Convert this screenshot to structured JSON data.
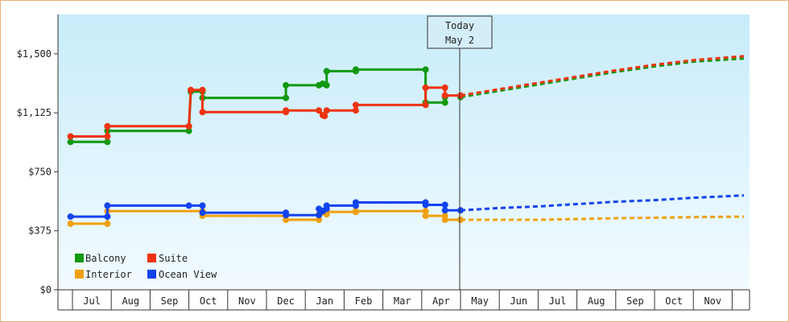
{
  "chart_data": {
    "type": "line",
    "title": "",
    "xlabel": "",
    "ylabel": "",
    "ylim": [
      0,
      1750
    ],
    "y_ticks": [
      "$0",
      "$375",
      "$750",
      "$1,125",
      "$1,500"
    ],
    "x_ticks": [
      "Jul",
      "Aug",
      "Sep",
      "Oct",
      "Nov",
      "Dec",
      "Jan",
      "Feb",
      "Mar",
      "Apr",
      "May",
      "Jun",
      "Jul",
      "Aug",
      "Sep",
      "Oct",
      "Nov"
    ],
    "today_marker": {
      "line1": "Today",
      "line2": "May 2"
    },
    "legend_position": "bottom-left",
    "grid": false,
    "series": [
      {
        "name": "Balcony",
        "color": "#119911",
        "history": [
          [
            -0.05,
            940
          ],
          [
            0.9,
            940
          ],
          [
            0.9,
            1010
          ],
          [
            3.0,
            1010
          ],
          [
            3.05,
            1260
          ],
          [
            3.35,
            1260
          ],
          [
            3.35,
            1220
          ],
          [
            5.5,
            1220
          ],
          [
            5.5,
            1300
          ],
          [
            6.35,
            1300
          ],
          [
            6.55,
            1300
          ],
          [
            6.55,
            1390
          ],
          [
            7.3,
            1390
          ],
          [
            7.3,
            1400
          ],
          [
            9.1,
            1400
          ],
          [
            9.1,
            1190
          ],
          [
            9.6,
            1190
          ],
          [
            9.6,
            1225
          ]
        ],
        "markers": [
          [
            -0.05,
            940
          ],
          [
            0.9,
            940
          ],
          [
            0.9,
            1010
          ],
          [
            3.0,
            1010
          ],
          [
            3.05,
            1260
          ],
          [
            3.35,
            1260
          ],
          [
            3.35,
            1220
          ],
          [
            5.5,
            1220
          ],
          [
            5.5,
            1300
          ],
          [
            6.35,
            1300
          ],
          [
            6.45,
            1310
          ],
          [
            6.55,
            1300
          ],
          [
            6.55,
            1390
          ],
          [
            7.3,
            1390
          ],
          [
            7.3,
            1400
          ],
          [
            9.1,
            1400
          ],
          [
            9.1,
            1190
          ],
          [
            9.6,
            1190
          ],
          [
            9.6,
            1225
          ],
          [
            10.0,
            1225
          ]
        ],
        "forecast": [
          [
            10.0,
            1225
          ],
          [
            11.0,
            1265
          ],
          [
            12.0,
            1305
          ],
          [
            13.0,
            1345
          ],
          [
            14.0,
            1385
          ],
          [
            15.0,
            1420
          ],
          [
            16.0,
            1450
          ],
          [
            17.3,
            1470
          ]
        ]
      },
      {
        "name": "Suite",
        "color": "#ee3311",
        "history": [
          [
            -0.05,
            975
          ],
          [
            0.9,
            975
          ],
          [
            0.9,
            1040
          ],
          [
            3.0,
            1040
          ],
          [
            3.05,
            1270
          ],
          [
            3.35,
            1270
          ],
          [
            3.35,
            1130
          ],
          [
            5.5,
            1130
          ],
          [
            5.5,
            1140
          ],
          [
            6.35,
            1140
          ],
          [
            6.5,
            1105
          ],
          [
            6.55,
            1140
          ],
          [
            7.3,
            1140
          ],
          [
            7.3,
            1175
          ],
          [
            9.1,
            1175
          ],
          [
            9.1,
            1285
          ],
          [
            9.6,
            1285
          ],
          [
            9.6,
            1235
          ],
          [
            10.0,
            1235
          ]
        ],
        "markers": [
          [
            -0.05,
            975
          ],
          [
            0.9,
            975
          ],
          [
            0.9,
            1040
          ],
          [
            3.0,
            1040
          ],
          [
            3.05,
            1270
          ],
          [
            3.35,
            1270
          ],
          [
            3.35,
            1130
          ],
          [
            5.5,
            1130
          ],
          [
            5.5,
            1140
          ],
          [
            6.35,
            1140
          ],
          [
            6.45,
            1110
          ],
          [
            6.5,
            1105
          ],
          [
            6.55,
            1140
          ],
          [
            7.3,
            1140
          ],
          [
            7.3,
            1175
          ],
          [
            9.1,
            1175
          ],
          [
            9.1,
            1285
          ],
          [
            9.6,
            1285
          ],
          [
            9.6,
            1235
          ],
          [
            10.0,
            1235
          ]
        ],
        "forecast": [
          [
            10.0,
            1235
          ],
          [
            11.0,
            1275
          ],
          [
            12.0,
            1315
          ],
          [
            13.0,
            1355
          ],
          [
            14.0,
            1395
          ],
          [
            15.0,
            1430
          ],
          [
            16.0,
            1460
          ],
          [
            17.3,
            1485
          ]
        ]
      },
      {
        "name": "Interior",
        "color": "#f0a010",
        "history": [
          [
            -0.05,
            420
          ],
          [
            0.9,
            420
          ],
          [
            0.9,
            500
          ],
          [
            3.0,
            500
          ],
          [
            3.35,
            500
          ],
          [
            3.35,
            470
          ],
          [
            5.5,
            470
          ],
          [
            5.5,
            445
          ],
          [
            6.35,
            445
          ],
          [
            6.35,
            480
          ],
          [
            6.55,
            480
          ],
          [
            6.55,
            495
          ],
          [
            7.3,
            495
          ],
          [
            7.3,
            500
          ],
          [
            9.1,
            500
          ],
          [
            9.1,
            470
          ],
          [
            9.6,
            470
          ],
          [
            9.6,
            445
          ],
          [
            10.0,
            445
          ]
        ],
        "markers": [
          [
            -0.05,
            420
          ],
          [
            0.9,
            420
          ],
          [
            0.9,
            500
          ],
          [
            3.35,
            500
          ],
          [
            3.35,
            470
          ],
          [
            5.5,
            470
          ],
          [
            5.5,
            445
          ],
          [
            6.35,
            445
          ],
          [
            6.35,
            480
          ],
          [
            6.55,
            480
          ],
          [
            6.55,
            495
          ],
          [
            7.3,
            495
          ],
          [
            7.3,
            500
          ],
          [
            9.1,
            500
          ],
          [
            9.1,
            470
          ],
          [
            9.6,
            470
          ],
          [
            9.6,
            445
          ],
          [
            10.0,
            445
          ]
        ],
        "forecast": [
          [
            10.0,
            445
          ],
          [
            12.0,
            445
          ],
          [
            13.0,
            450
          ],
          [
            14.0,
            455
          ],
          [
            15.0,
            458
          ],
          [
            16.0,
            462
          ],
          [
            17.3,
            465
          ]
        ]
      },
      {
        "name": "Ocean View",
        "color": "#1144ee",
        "history": [
          [
            -0.05,
            465
          ],
          [
            0.9,
            465
          ],
          [
            0.9,
            535
          ],
          [
            3.0,
            535
          ],
          [
            3.35,
            535
          ],
          [
            3.35,
            490
          ],
          [
            5.5,
            490
          ],
          [
            5.5,
            475
          ],
          [
            6.35,
            475
          ],
          [
            6.35,
            515
          ],
          [
            6.55,
            515
          ],
          [
            6.55,
            535
          ],
          [
            7.3,
            535
          ],
          [
            7.3,
            555
          ],
          [
            9.1,
            555
          ],
          [
            9.1,
            540
          ],
          [
            9.6,
            540
          ],
          [
            9.6,
            505
          ],
          [
            10.0,
            505
          ]
        ],
        "markers": [
          [
            -0.05,
            465
          ],
          [
            0.9,
            465
          ],
          [
            0.9,
            535
          ],
          [
            3.0,
            535
          ],
          [
            3.35,
            535
          ],
          [
            3.35,
            490
          ],
          [
            5.5,
            490
          ],
          [
            5.5,
            475
          ],
          [
            6.35,
            475
          ],
          [
            6.35,
            515
          ],
          [
            6.45,
            500
          ],
          [
            6.55,
            515
          ],
          [
            6.55,
            535
          ],
          [
            7.3,
            535
          ],
          [
            7.3,
            555
          ],
          [
            9.1,
            555
          ],
          [
            9.1,
            540
          ],
          [
            9.6,
            540
          ],
          [
            9.6,
            505
          ],
          [
            10.0,
            505
          ]
        ],
        "forecast": [
          [
            10.0,
            505
          ],
          [
            11.0,
            520
          ],
          [
            12.0,
            530
          ],
          [
            13.0,
            545
          ],
          [
            14.0,
            560
          ],
          [
            15.0,
            570
          ],
          [
            16.0,
            585
          ],
          [
            17.3,
            600
          ]
        ]
      }
    ]
  }
}
